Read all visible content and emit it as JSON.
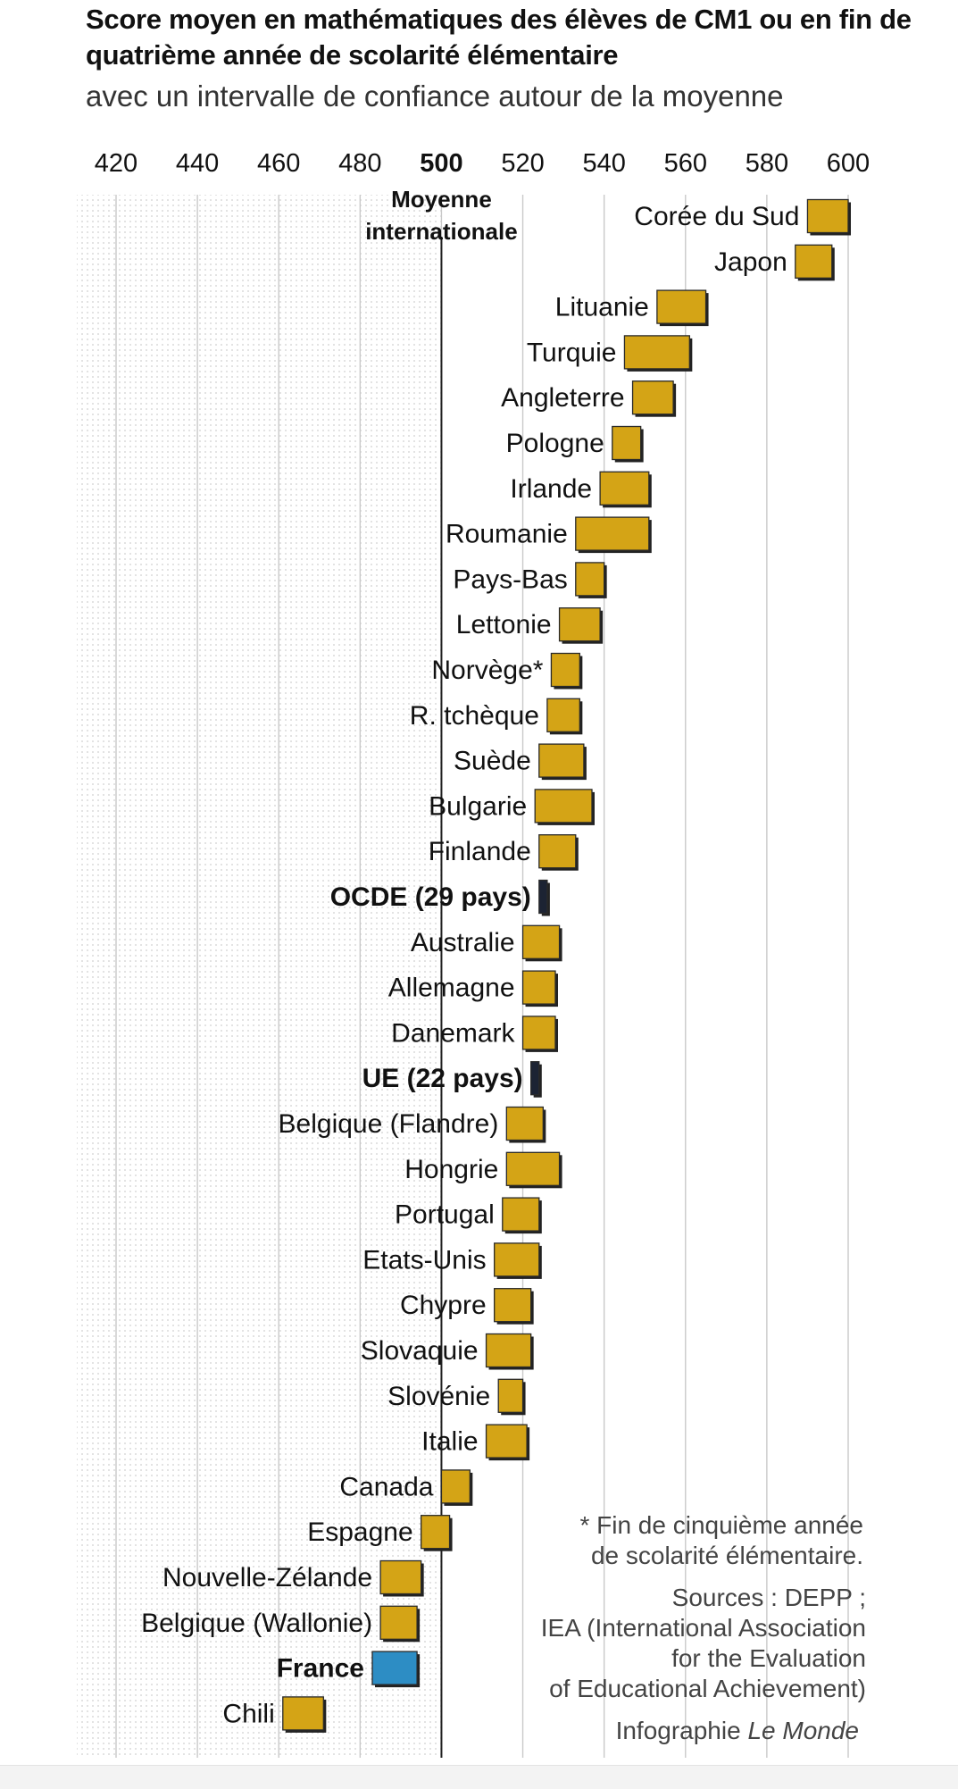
{
  "header": {
    "title": "Score moyen en mathématiques des élèves de CM1 ou en fin de quatrième année de scolarité élémentaire",
    "subtitle": "avec un intervalle de confiance autour de la moyenne"
  },
  "colors": {
    "country": "#d4a416",
    "aggregate": "#1c2333",
    "france": "#2d8dc4",
    "reference_line": "#222222",
    "grid": "#c9c9c9"
  },
  "chart_data": {
    "type": "bar",
    "xlim": [
      420,
      600
    ],
    "x_ticks": [
      420,
      440,
      460,
      480,
      500,
      520,
      540,
      560,
      580,
      600
    ],
    "reference": {
      "value": 500,
      "label_line1": "Moyenne",
      "label_line2": "internationale"
    },
    "grid": true,
    "categories": [
      {
        "name": "Corée du Sud",
        "low": 590,
        "high": 600,
        "kind": "country"
      },
      {
        "name": "Japon",
        "low": 587,
        "high": 596,
        "kind": "country"
      },
      {
        "name": "Lituanie",
        "low": 553,
        "high": 565,
        "kind": "country"
      },
      {
        "name": "Turquie",
        "low": 545,
        "high": 561,
        "kind": "country"
      },
      {
        "name": "Angleterre",
        "low": 547,
        "high": 557,
        "kind": "country"
      },
      {
        "name": "Pologne",
        "low": 542,
        "high": 549,
        "kind": "country"
      },
      {
        "name": "Irlande",
        "low": 539,
        "high": 551,
        "kind": "country"
      },
      {
        "name": "Roumanie",
        "low": 533,
        "high": 551,
        "kind": "country"
      },
      {
        "name": "Pays-Bas",
        "low": 533,
        "high": 540,
        "kind": "country"
      },
      {
        "name": "Lettonie",
        "low": 529,
        "high": 539,
        "kind": "country"
      },
      {
        "name": "Norvège*",
        "low": 527,
        "high": 534,
        "kind": "country"
      },
      {
        "name": "R. tchèque",
        "low": 526,
        "high": 534,
        "kind": "country"
      },
      {
        "name": "Suède",
        "low": 524,
        "high": 535,
        "kind": "country"
      },
      {
        "name": "Bulgarie",
        "low": 523,
        "high": 537,
        "kind": "country"
      },
      {
        "name": "Finlande",
        "low": 524,
        "high": 533,
        "kind": "country"
      },
      {
        "name": "OCDE (29 pays)",
        "low": 524,
        "high": 526,
        "kind": "aggregate"
      },
      {
        "name": "Australie",
        "low": 520,
        "high": 529,
        "kind": "country"
      },
      {
        "name": "Allemagne",
        "low": 520,
        "high": 528,
        "kind": "country"
      },
      {
        "name": "Danemark",
        "low": 520,
        "high": 528,
        "kind": "country"
      },
      {
        "name": "UE (22 pays)",
        "low": 522,
        "high": 524,
        "kind": "aggregate"
      },
      {
        "name": "Belgique (Flandre)",
        "low": 516,
        "high": 525,
        "kind": "country"
      },
      {
        "name": "Hongrie",
        "low": 516,
        "high": 529,
        "kind": "country"
      },
      {
        "name": "Portugal",
        "low": 515,
        "high": 524,
        "kind": "country"
      },
      {
        "name": "Etats-Unis",
        "low": 513,
        "high": 524,
        "kind": "country"
      },
      {
        "name": "Chypre",
        "low": 513,
        "high": 522,
        "kind": "country"
      },
      {
        "name": "Slovaquie",
        "low": 511,
        "high": 522,
        "kind": "country"
      },
      {
        "name": "Slovénie",
        "low": 514,
        "high": 520,
        "kind": "country"
      },
      {
        "name": "Italie",
        "low": 511,
        "high": 521,
        "kind": "country"
      },
      {
        "name": "Canada",
        "low": 500,
        "high": 507,
        "kind": "country"
      },
      {
        "name": "Espagne",
        "low": 495,
        "high": 502,
        "kind": "country"
      },
      {
        "name": "Nouvelle-Zélande",
        "low": 485,
        "high": 495,
        "kind": "country"
      },
      {
        "name": "Belgique (Wallonie)",
        "low": 485,
        "high": 494,
        "kind": "country"
      },
      {
        "name": "France",
        "low": 483,
        "high": 494,
        "kind": "france"
      },
      {
        "name": "Chili",
        "low": 461,
        "high": 471,
        "kind": "country"
      }
    ]
  },
  "notes": {
    "footnote_line1": "* Fin de cinquième année",
    "footnote_line2": "de scolarité élémentaire.",
    "sources_line1": "Sources : DEPP ;",
    "sources_line2": "IEA (International Association",
    "sources_line3": "for the Evaluation",
    "sources_line4": "of Educational Achievement)",
    "credit_prefix": "Infographie ",
    "credit_name": "Le Monde"
  }
}
